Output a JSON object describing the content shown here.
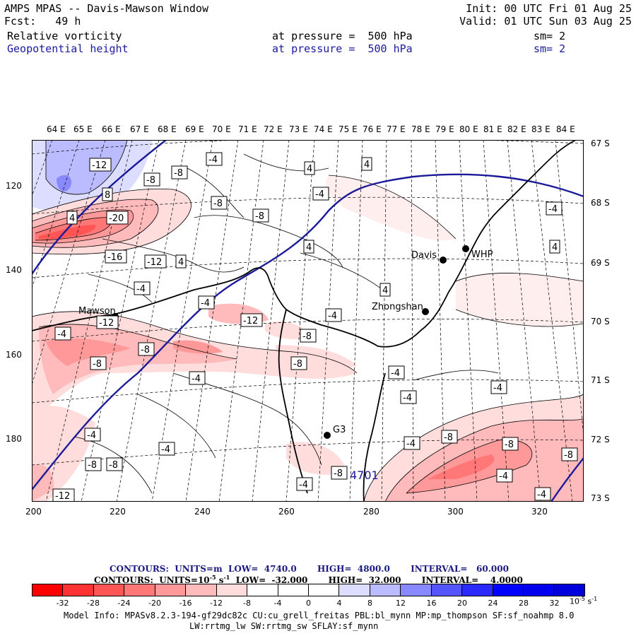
{
  "header": {
    "title": "AMPS MPAS -- Davis-Mawson Window",
    "init": "Init: 00 UTC Fri 01 Aug 25",
    "fcst": "Fcst:   49 h",
    "valid": "Valid: 01 UTC Sun 03 Aug 25",
    "field1": {
      "name": "Relative vorticity",
      "level": "at pressure =  500 hPa",
      "smooth": "sm= 2"
    },
    "field2": {
      "name": "Geopotential height",
      "level": "at pressure =  500 hPa",
      "smooth": "sm= 2"
    }
  },
  "axes": {
    "top_lon": [
      "64 E",
      "65 E",
      "66 E",
      "67 E",
      "68 E",
      "69 E",
      "70 E",
      "71 E",
      "72 E",
      "73 E",
      "74 E",
      "75 E",
      "76 E",
      "77 E",
      "78 E",
      "79 E",
      "80 E",
      "81 E",
      "82 E",
      "83 E",
      "84 E"
    ],
    "right_lat": [
      "67 S",
      "68 S",
      "69 S",
      "70 S",
      "71 S",
      "72 S",
      "73 S"
    ],
    "left_y": [
      "120",
      "140",
      "160",
      "180"
    ],
    "bottom_x": [
      "200",
      "220",
      "240",
      "260",
      "280",
      "300",
      "320"
    ]
  },
  "stations": [
    {
      "name": "Mawson"
    },
    {
      "name": "Davis"
    },
    {
      "name": "WHP"
    },
    {
      "name": "Zhongshan"
    },
    {
      "name": "G3"
    }
  ],
  "contour_labels": [
    "-12",
    "8",
    "4",
    "-20",
    "-16",
    "-12",
    "-8",
    "-8",
    "-4",
    "-8",
    "-8",
    "4",
    "-4",
    "-4",
    "4",
    "4",
    "4",
    "-4",
    "4",
    "4",
    "-12",
    "-4",
    "-12",
    "-8",
    "-8",
    "-8",
    "-8",
    "-4",
    "-4",
    "-4",
    "-4",
    "-4",
    "-8",
    "-4",
    "-8",
    "-4",
    "-4",
    "-8",
    "-8",
    "-12",
    "-4",
    "-8",
    "-4",
    "-4",
    "-4",
    "-8"
  ],
  "height_label": "4701",
  "contours_info": {
    "line1_prefix": "CONTOURS:  UNITS=m  LOW=  4740.0",
    "line1_high": "HIGH=  4800.0",
    "line1_interval": "INTERVAL=   60.000",
    "line2_prefix": "CONTOURS:  UNITS=10",
    "line2_exp": "-5",
    "line2_unit": " s",
    "line2_unit_exp": "-1",
    "line2_low": "  LOW=  -32.000",
    "line2_high": "HIGH=  32.000",
    "line2_interval": "INTERVAL=    4.0000"
  },
  "colorbar": {
    "colors": [
      "#ff0000",
      "#ff3333",
      "#ff5555",
      "#ff7777",
      "#ff9999",
      "#ffbbbb",
      "#ffdddd",
      "#ffffff",
      "#ffffff",
      "#ffffff",
      "#ddddff",
      "#bbbbff",
      "#8888ff",
      "#5555ff",
      "#2a2aff",
      "#0000ff",
      "#0000ee",
      "#0000dd"
    ],
    "ticks": [
      "-32",
      "-28",
      "-24",
      "-20",
      "-16",
      "-12",
      "-8",
      "-4",
      "0",
      "4",
      "8",
      "12",
      "16",
      "20",
      "24",
      "28",
      "32"
    ],
    "unit": "10",
    "unit_exp": "-5",
    "unit_s": " s",
    "unit_s_exp": "-1"
  },
  "model_info": {
    "line1": "Model Info: MPASv8.2.3-194-gf29dc82c CU:cu_grell_freitas PBL:bl_mynn MP:mp_thompson SF:sf_noahmp 8.0",
    "line2": "LW:rrtmg_lw SW:rrtmg_sw SFLAY:sf_mynn"
  }
}
